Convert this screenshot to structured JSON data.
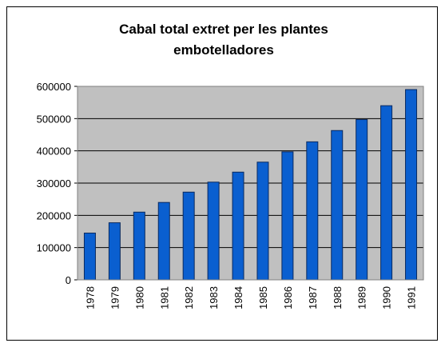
{
  "chart_data": {
    "type": "bar",
    "title": "Cabal total extret per les plantes embotelladores",
    "categories": [
      "1978",
      "1979",
      "1980",
      "1981",
      "1982",
      "1983",
      "1984",
      "1985",
      "1986",
      "1987",
      "1988",
      "1989",
      "1990",
      "1991"
    ],
    "values": [
      145000,
      177000,
      210000,
      240000,
      272000,
      303000,
      334000,
      365000,
      397000,
      428000,
      463000,
      497000,
      540000,
      590000
    ],
    "color": "#0a5fd0",
    "ylim": [
      0,
      600000
    ],
    "yticks": [
      0,
      100000,
      200000,
      300000,
      400000,
      500000,
      600000
    ],
    "grid": true
  }
}
